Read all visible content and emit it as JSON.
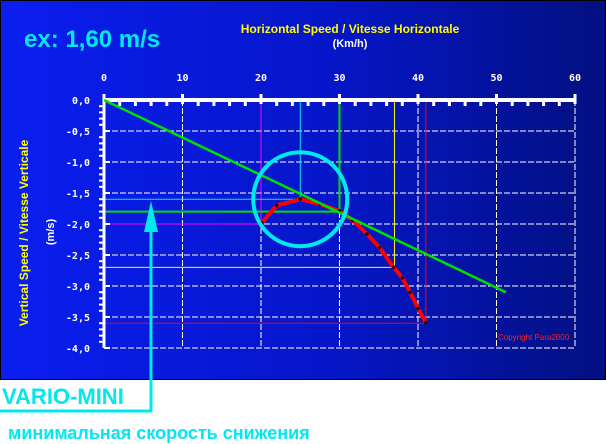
{
  "annotation": {
    "example": "ex: 1,60 m/s",
    "label": "VARIO-MINI",
    "caption": "минимальная скорость снижения",
    "copyright": "Copyright Para2000"
  },
  "colors": {
    "background": "#0a1ef0",
    "polar_curve": "#ff0000",
    "tangent_line": "#00e000",
    "highlight_circle": "#00e8f0"
  },
  "chart_data": {
    "type": "line",
    "title": "Horizontal Speed / Vitesse Horizontale",
    "xlabel": "(Km/h)",
    "ylabel": "Vertical Speed / Vitesse Verticale",
    "yunit": "(m/s)",
    "xlim": [
      0,
      60
    ],
    "ylim": [
      -4,
      0
    ],
    "x_ticks": [
      "0",
      "10",
      "20",
      "30",
      "40",
      "50",
      "60"
    ],
    "y_ticks": [
      "0,0",
      "-0,5",
      "-1,0",
      "-1,5",
      "-2,0",
      "-2,5",
      "-3,0",
      "-3,5",
      "-4,0"
    ],
    "grid": true,
    "series": [
      {
        "type": "polar",
        "color": "#ff0000",
        "x": [
          20.1,
          22,
          25,
          27.5,
          30,
          31.7,
          33.5,
          35.1,
          36.9,
          38,
          39,
          40,
          41
        ],
        "y": [
          -1.98,
          -1.7,
          -1.6,
          -1.68,
          -1.79,
          -1.94,
          -2.16,
          -2.38,
          -2.7,
          -2.87,
          -3.1,
          -3.36,
          -3.59
        ]
      },
      {
        "type": "tangent",
        "color": "#00e000",
        "x": [
          0,
          51.2
        ],
        "y": [
          0,
          -3.1
        ]
      }
    ],
    "markers": [
      {
        "color": "#ff00ff",
        "x": 20,
        "y": -2.0
      },
      {
        "color": "#00e8f0",
        "x": 25,
        "y": -1.6
      },
      {
        "color": "#00e000",
        "x": 30,
        "y": -1.8
      },
      {
        "color": "#ffff00",
        "x": 37,
        "y": -2.7
      },
      {
        "color": "#ff0000",
        "x": 41,
        "y": -3.6
      }
    ],
    "highlight": {
      "x": 25,
      "y": -1.6
    }
  }
}
